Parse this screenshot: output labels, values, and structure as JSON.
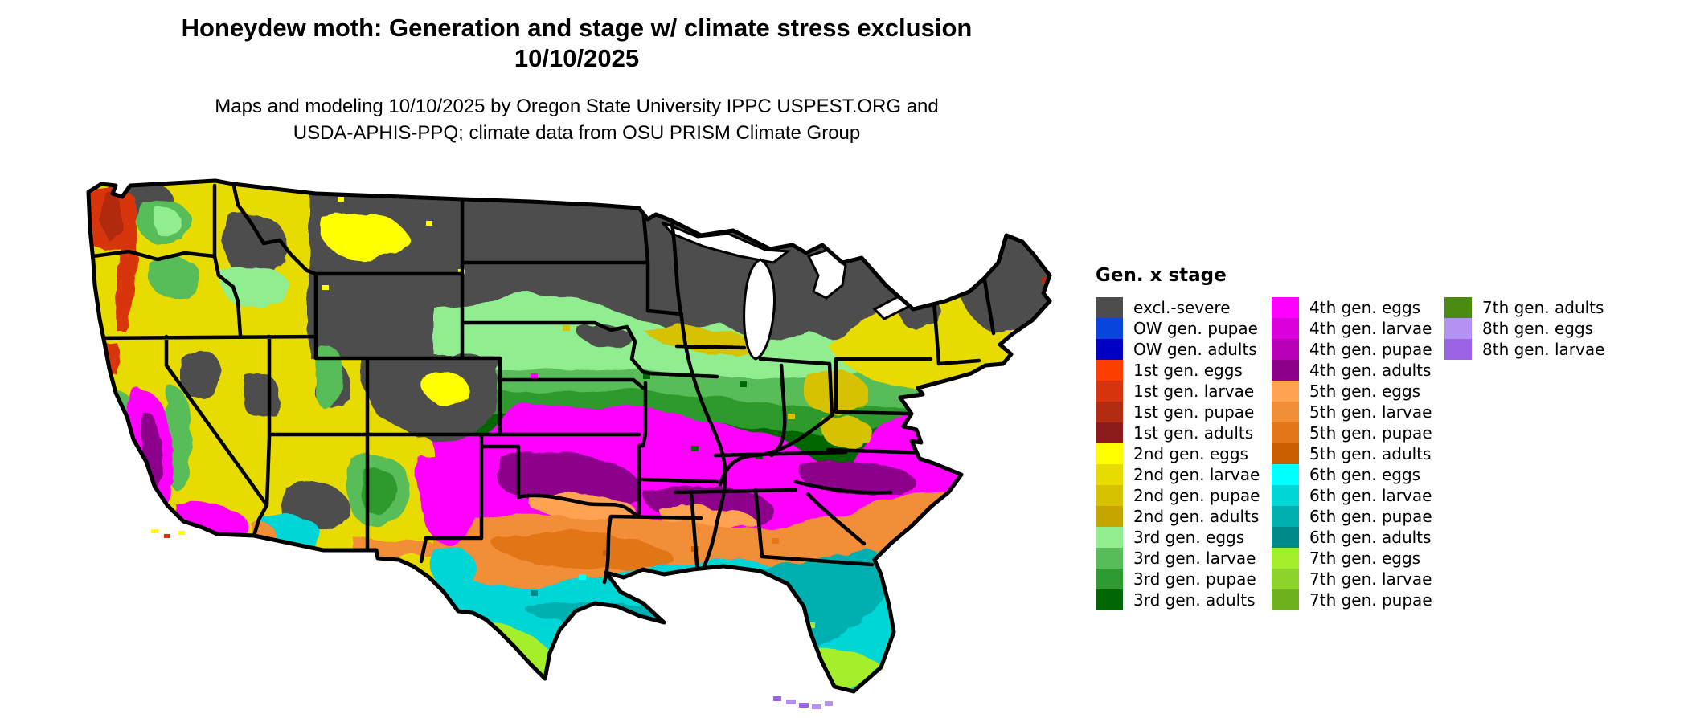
{
  "title": {
    "line1": "Honeydew moth: Generation and stage w/ climate stress exclusion",
    "line2": "10/10/2025"
  },
  "subtitle": {
    "line1": "Maps and modeling 10/10/2025 by Oregon State University IPPC USPEST.ORG and",
    "line2": "USDA-APHIS-PPQ; climate data from OSU PRISM Climate Group"
  },
  "colors": {
    "excl_severe": "#4D4D4D",
    "ow_pupae": "#0845DD",
    "ow_adults": "#0000C4",
    "g1_eggs": "#FE3D00",
    "g1_larvae": "#D8350F",
    "g1_pupae": "#B12C10",
    "g1_adults": "#8E1B1B",
    "g2_eggs": "#FFFF00",
    "g2_larvae": "#E8DB00",
    "g2_pupae": "#D6C200",
    "g2_adults": "#C7A500",
    "g3_eggs": "#90EE90",
    "g3_larvae": "#58BC58",
    "g3_pupae": "#2F9A2F",
    "g3_adults": "#006606",
    "g4_eggs": "#FF00FF",
    "g4_larvae": "#DB00DB",
    "g4_pupae": "#B800B8",
    "g4_adults": "#8C008C",
    "g5_eggs": "#FFA352",
    "g5_larvae": "#F28D38",
    "g5_pupae": "#E27618",
    "g5_adults": "#C95F02",
    "g6_eggs": "#00FFFF",
    "g6_larvae": "#00D6D6",
    "g6_pupae": "#00B0B0",
    "g6_adults": "#008A8A",
    "g7_eggs": "#A4EE2C",
    "g7_larvae": "#8CD42C",
    "g7_pupae": "#6DB21E",
    "g7_adults": "#4A8B10",
    "g8_eggs": "#B392F2",
    "g8_larvae": "#9C63E6"
  },
  "legend": {
    "title": "Gen. x stage",
    "columns": [
      [
        {
          "label": "excl.-severe",
          "color_key": "excl_severe"
        },
        {
          "label": "OW gen. pupae",
          "color_key": "ow_pupae"
        },
        {
          "label": "OW gen. adults",
          "color_key": "ow_adults"
        },
        {
          "label": "1st gen. eggs",
          "color_key": "g1_eggs"
        },
        {
          "label": "1st gen. larvae",
          "color_key": "g1_larvae"
        },
        {
          "label": "1st gen. pupae",
          "color_key": "g1_pupae"
        },
        {
          "label": "1st gen. adults",
          "color_key": "g1_adults"
        },
        {
          "label": "2nd gen. eggs",
          "color_key": "g2_eggs"
        },
        {
          "label": "2nd gen. larvae",
          "color_key": "g2_larvae"
        },
        {
          "label": "2nd gen. pupae",
          "color_key": "g2_pupae"
        },
        {
          "label": "2nd gen. adults",
          "color_key": "g2_adults"
        },
        {
          "label": "3rd gen. eggs",
          "color_key": "g3_eggs"
        },
        {
          "label": "3rd gen. larvae",
          "color_key": "g3_larvae"
        },
        {
          "label": "3rd gen. pupae",
          "color_key": "g3_pupae"
        },
        {
          "label": "3rd gen. adults",
          "color_key": "g3_adults"
        }
      ],
      [
        {
          "label": "4th gen. eggs",
          "color_key": "g4_eggs"
        },
        {
          "label": "4th gen. larvae",
          "color_key": "g4_larvae"
        },
        {
          "label": "4th gen. pupae",
          "color_key": "g4_pupae"
        },
        {
          "label": "4th gen. adults",
          "color_key": "g4_adults"
        },
        {
          "label": "5th gen. eggs",
          "color_key": "g5_eggs"
        },
        {
          "label": "5th gen. larvae",
          "color_key": "g5_larvae"
        },
        {
          "label": "5th gen. pupae",
          "color_key": "g5_pupae"
        },
        {
          "label": "5th gen. adults",
          "color_key": "g5_adults"
        },
        {
          "label": "6th gen. eggs",
          "color_key": "g6_eggs"
        },
        {
          "label": "6th gen. larvae",
          "color_key": "g6_larvae"
        },
        {
          "label": "6th gen. pupae",
          "color_key": "g6_pupae"
        },
        {
          "label": "6th gen. adults",
          "color_key": "g6_adults"
        },
        {
          "label": "7th gen. eggs",
          "color_key": "g7_eggs"
        },
        {
          "label": "7th gen. larvae",
          "color_key": "g7_larvae"
        },
        {
          "label": "7th gen. pupae",
          "color_key": "g7_pupae"
        }
      ],
      [
        {
          "label": "7th gen. adults",
          "color_key": "g7_adults"
        },
        {
          "label": "8th gen. eggs",
          "color_key": "g8_eggs"
        },
        {
          "label": "8th gen. larvae",
          "color_key": "g8_larvae"
        }
      ]
    ]
  },
  "map": {
    "kind": "US continental choropleth raster, Albers-style projection, black state borders",
    "date_shown": "10/10/2025",
    "zones_north_to_south": [
      {
        "zone": "northern tier (MT, ND, northern SD, MN, WI, upper MI, Adirondacks, most of Maine, high Rockies of WY/CO/ID)",
        "class": "excl.-severe"
      },
      {
        "zone": "upper Midwest band, NY, PA north, southern New England",
        "class": "2nd gen. larvae/pupae/adults (yellows/golds)"
      },
      {
        "zone": "central plains SD/NE/IA/IL/IN/OH/PA",
        "class": "3rd gen. eggs through adults (light to dark greens)"
      },
      {
        "zone": "KS, MO, KY, TN, VA, NC, Delmarva",
        "class": "4th gen. eggs (magenta) with 4th gen. adults (dark purple) in E-OK/AR, MS/AL/TN and NC/SC"
      },
      {
        "zone": "OK south, TX north, AR, LA north, MS, AL, GA, SC",
        "class": "5th gen. eggs-adults (oranges)"
      },
      {
        "zone": "central TX, gulf coast, LA south, north FL",
        "class": "6th gen. eggs-adults (cyans/teals)"
      },
      {
        "zone": "south TX and central-south FL",
        "class": "7th gen. eggs (chartreuse)"
      },
      {
        "zone": "Florida Keys and far south TX dots",
        "class": "8th gen. eggs/larvae (purples)"
      }
    ],
    "west_features": [
      {
        "feature": "WA/OR coast and Cascades",
        "class": "1st gen. larvae/pupae (reds)"
      },
      {
        "feature": "Great Basin NV/UT/ID/E-OR/E-WA",
        "class": "2nd gen. (yellow) mottled with excl.-severe gray and 3rd gen. greens"
      },
      {
        "feature": "California Central Valley",
        "class": "4th gen. eggs (magenta) with 4th gen. adults core"
      },
      {
        "feature": "southern AZ low desert",
        "class": "6th gen. (cyan) and 5th gen. (orange) mottle"
      },
      {
        "feature": "NM/AZ highlands",
        "class": "3rd gen. greens with magenta and yellow mottle"
      }
    ]
  }
}
